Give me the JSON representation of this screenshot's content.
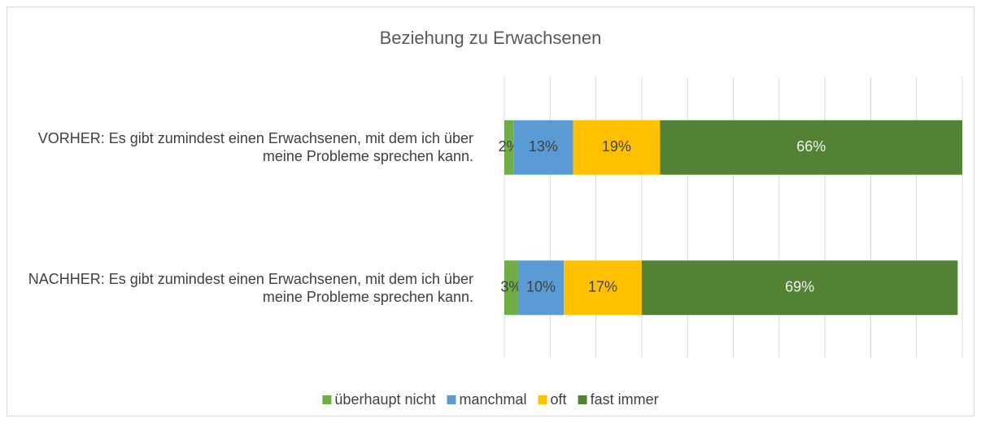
{
  "chart_data": {
    "type": "stacked_bar_horizontal",
    "title": "Beziehung zu Erwachsenen",
    "categories": [
      "VORHER: Es gibt zumindest einen Erwachsenen, mit dem ich über meine Probleme sprechen kann.",
      "NACHHER: Es gibt zumindest einen Erwachsenen, mit dem ich über meine Probleme sprechen kann."
    ],
    "series": [
      {
        "name": "überhaupt nicht",
        "color": "#70ad47",
        "label_color": "#404040",
        "values": [
          2,
          3
        ],
        "value_labels": [
          "2%",
          "3%"
        ]
      },
      {
        "name": "manchmal",
        "color": "#5b9bd5",
        "label_color": "#404040",
        "values": [
          13,
          10
        ],
        "value_labels": [
          "13%",
          "10%"
        ]
      },
      {
        "name": "oft",
        "color": "#ffc000",
        "label_color": "#404040",
        "values": [
          19,
          17
        ],
        "value_labels": [
          "19%",
          "17%"
        ]
      },
      {
        "name": "fast immer",
        "color": "#548235",
        "label_color": "#f2f2f2",
        "values": [
          66,
          69
        ],
        "value_labels": [
          "66%",
          "69%"
        ]
      }
    ],
    "xlim": [
      0,
      100
    ],
    "xticks": [
      0,
      10,
      20,
      30,
      40,
      50,
      60,
      70,
      80,
      90,
      100
    ],
    "grid": true,
    "legend": "bottom"
  }
}
